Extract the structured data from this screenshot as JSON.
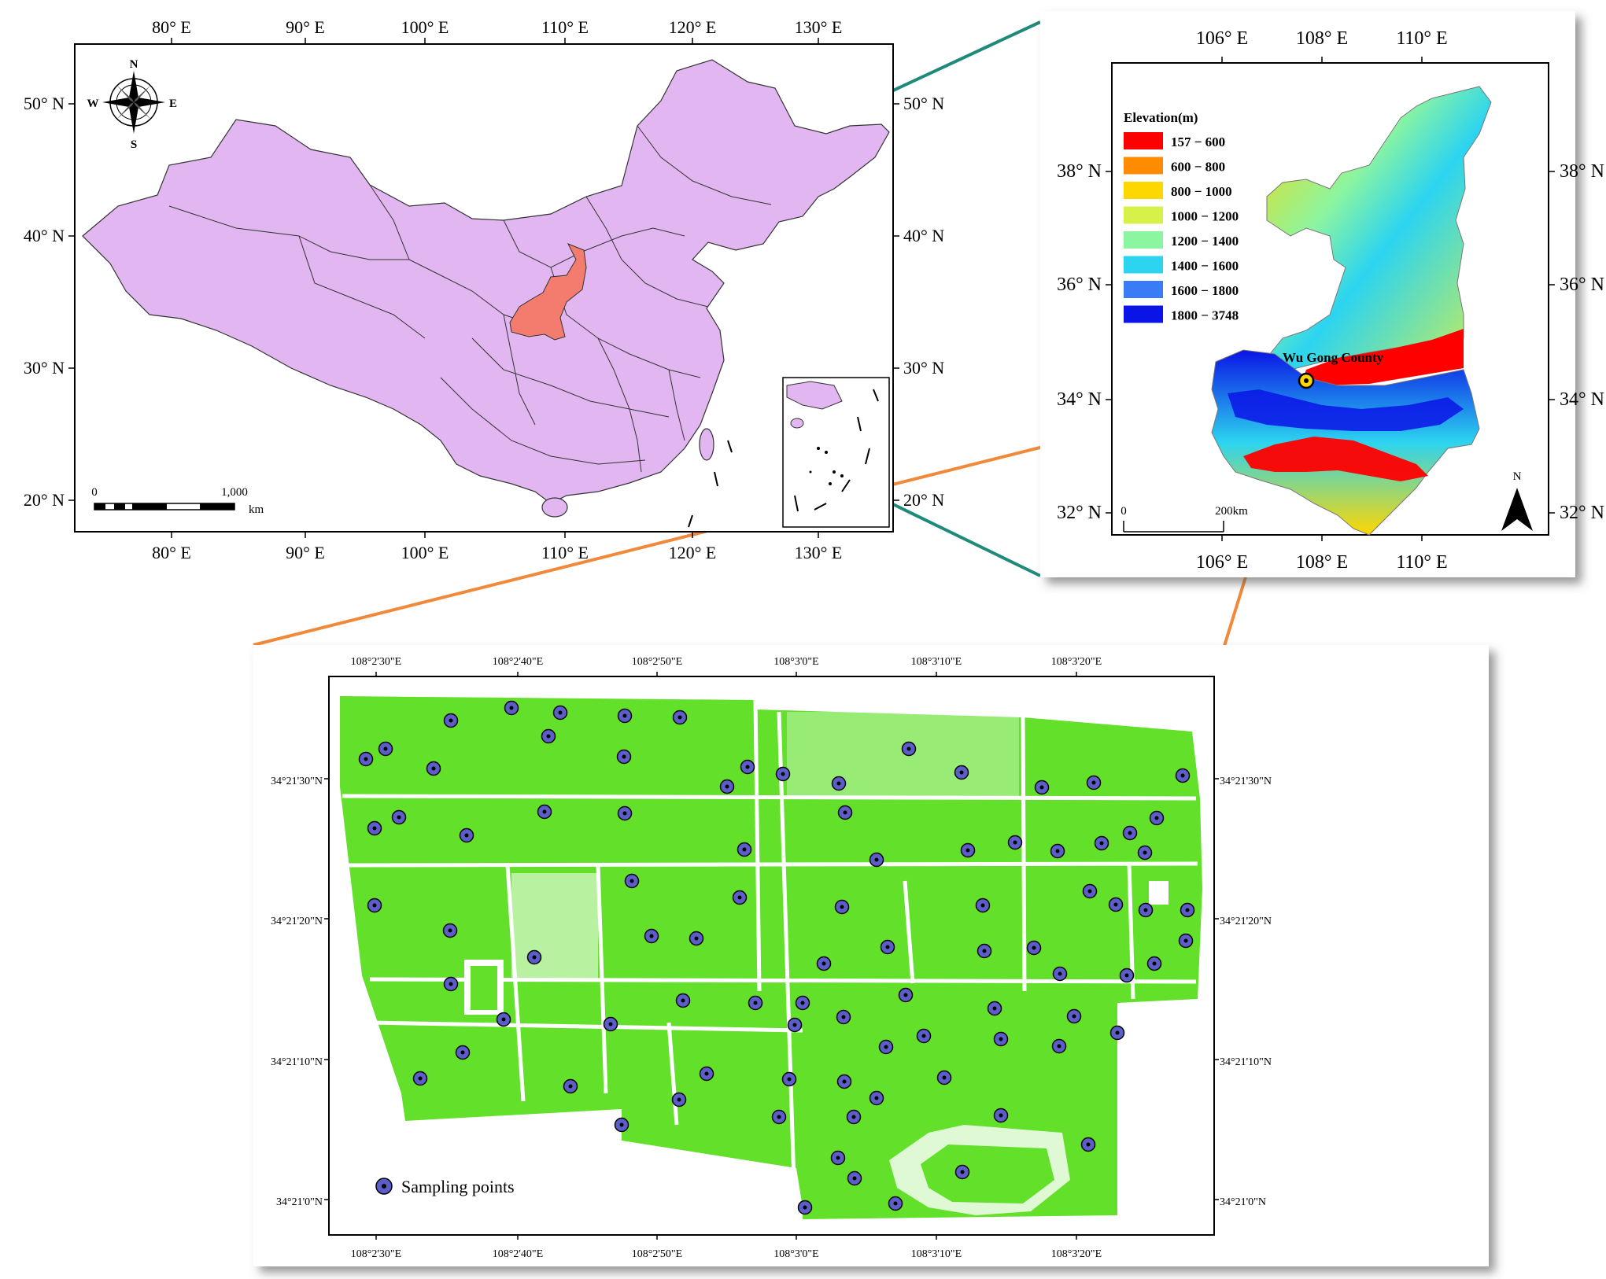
{
  "china_map": {
    "x_ticks": [
      "80° E",
      "90° E",
      "100° E",
      "110° E",
      "120° E",
      "130° E"
    ],
    "y_ticks_left": [
      "50° N",
      "40° N",
      "30° N",
      "20° N"
    ],
    "y_ticks_right": [
      "50° N",
      "40° N",
      "30° N",
      "20° N"
    ],
    "compass": {
      "n": "N",
      "s": "S",
      "e": "E",
      "w": "W"
    },
    "scale_bar": {
      "start": "0",
      "end": "1,000",
      "unit": "km"
    },
    "fill_color": "#e2b6f0",
    "highlight_color": "#f47c6e"
  },
  "shaanxi_map": {
    "x_ticks": [
      "106° E",
      "108° E",
      "110° E"
    ],
    "y_ticks_left": [
      "38° N",
      "36° N",
      "34° N",
      "32° N"
    ],
    "y_ticks_right": [
      "38° N",
      "36° N",
      "34° N",
      "32° N"
    ],
    "legend_title": "Elevation(m)",
    "legend": [
      {
        "label": "157 − 600",
        "color": "#ff0000"
      },
      {
        "label": "600 − 800",
        "color": "#ff8c00"
      },
      {
        "label": "800 − 1000",
        "color": "#ffd700"
      },
      {
        "label": "1000 − 1200",
        "color": "#d7f04a"
      },
      {
        "label": "1200 − 1400",
        "color": "#8cf5a0"
      },
      {
        "label": "1400 − 1600",
        "color": "#2cd4f0"
      },
      {
        "label": "1600 − 1800",
        "color": "#3a7cf5"
      },
      {
        "label": "1800 − 3748",
        "color": "#0a14e6"
      }
    ],
    "site_label": "Wu Gong County",
    "scale_bar": {
      "start": "0",
      "end": "200km"
    },
    "north": "N"
  },
  "field_map": {
    "x_ticks": [
      "108°2'30\"E",
      "108°2'40\"E",
      "108°2'50\"E",
      "108°3'0\"E",
      "108°3'10\"E",
      "108°3'20\"E"
    ],
    "y_ticks": [
      "34°21'30\"N",
      "34°21'20\"N",
      "34°21'10\"N",
      "34°21'0\"N"
    ],
    "legend_label": "Sampling points",
    "field_color": "#62e02a",
    "point_color": "#5b5ec8"
  }
}
